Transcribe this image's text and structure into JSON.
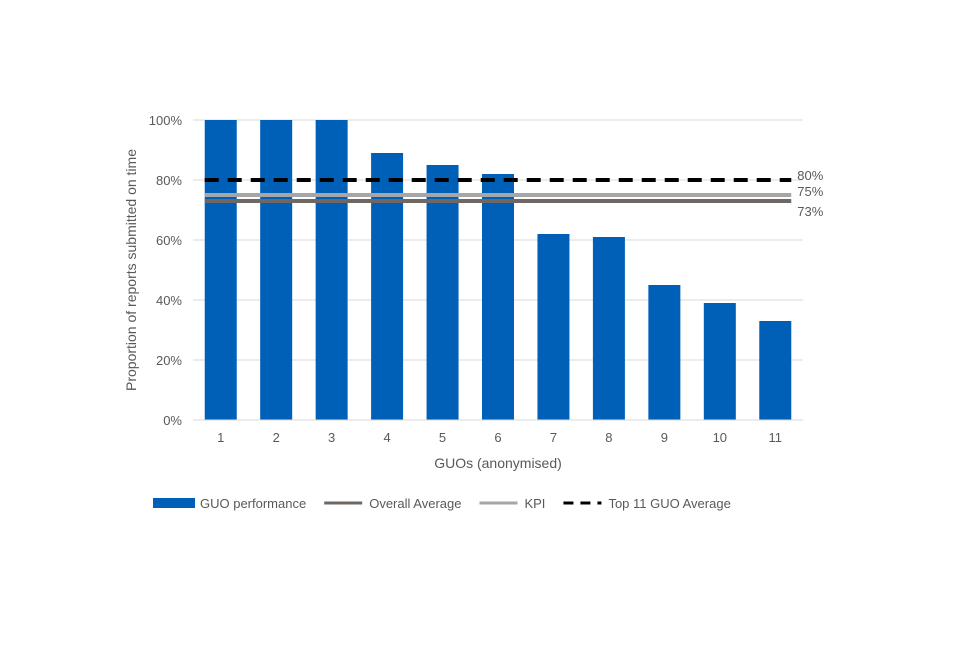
{
  "chart_data": {
    "type": "bar",
    "title": "",
    "xlabel": "GUOs (anonymised)",
    "ylabel": "Proportion of reports submitted on time",
    "categories": [
      "1",
      "2",
      "3",
      "4",
      "5",
      "6",
      "7",
      "8",
      "9",
      "10",
      "11"
    ],
    "ylim": [
      0,
      100
    ],
    "yticks": [
      "0%",
      "20%",
      "40%",
      "60%",
      "80%",
      "100%"
    ],
    "grid": true,
    "legend_placement": "bottom",
    "series": [
      {
        "name": "GUO performance",
        "type": "bar",
        "color": "#0060B8",
        "values": [
          100,
          100,
          100,
          89,
          85,
          82,
          62,
          61,
          45,
          39,
          33
        ]
      },
      {
        "name": "Overall Average",
        "type": "line",
        "color": "#6E6763",
        "value": 73,
        "label": "73%"
      },
      {
        "name": "KPI",
        "type": "line",
        "color": "#A6A6A6",
        "value": 75,
        "label": "75%"
      },
      {
        "name": "Top 11 GUO Average",
        "type": "dashed-line",
        "color": "#000000",
        "value": 80,
        "label": "80%"
      }
    ]
  }
}
